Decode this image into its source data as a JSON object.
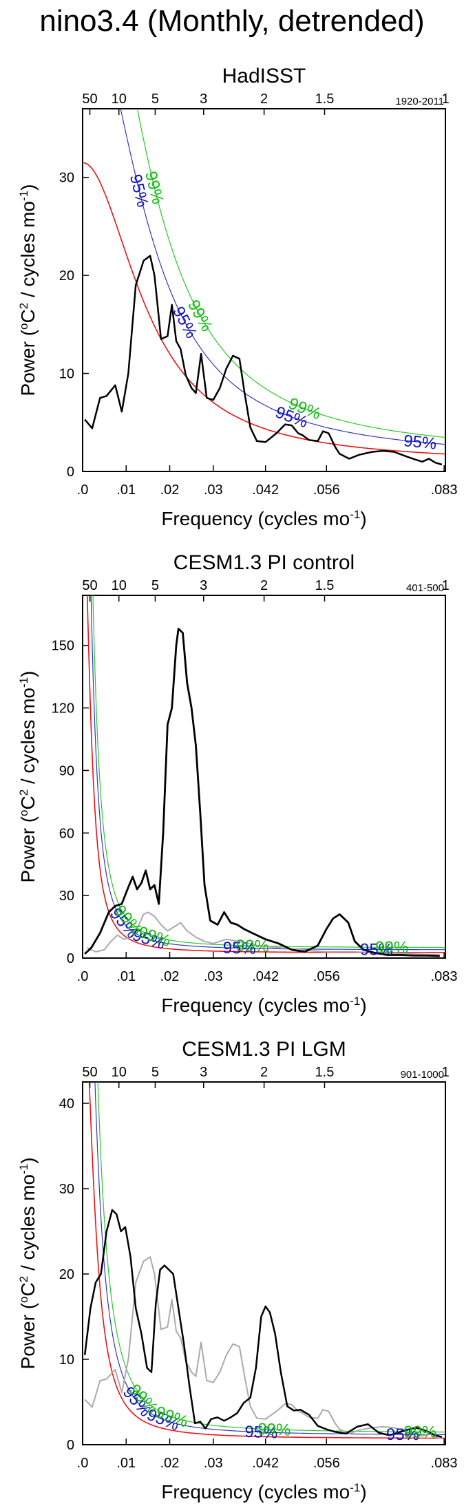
{
  "page_title": "nino3.4 (Monthly, detrended)",
  "colors": {
    "data": "#000000",
    "red_noise": "#ee1111",
    "ci95": "#3333cc",
    "ci99": "#22cc22",
    "reference": "#aaaaaa",
    "label95": "#1111bb",
    "label99": "#11bb11"
  },
  "chart_data": [
    {
      "type": "line",
      "title": "HadISST",
      "period_label": "1920-2011",
      "xlabel": "Frequency (cycles mo⁻¹)",
      "ylabel": "Power (°C² / cycles mo⁻¹)",
      "xlim": [
        0,
        0.0833
      ],
      "ylim": [
        0,
        37
      ],
      "x_ticks": [
        0,
        0.01,
        0.02,
        0.03,
        0.042,
        0.056,
        0.083
      ],
      "x_tick_labels": [
        ".0",
        ".01",
        ".02",
        ".03",
        ".042",
        ".056",
        ".083"
      ],
      "y_ticks": [
        0,
        10,
        20,
        30
      ],
      "y_tick_labels": [
        "0",
        "10",
        "20",
        "30"
      ],
      "period_ticks": [
        50,
        10,
        5,
        3,
        2,
        1.5,
        1
      ],
      "period_tick_labels": [
        "50",
        "10",
        "5",
        "3",
        "2",
        "1.5",
        "1"
      ],
      "rednoise": {
        "a": 31.5,
        "b": 22.0,
        "c": 0.8
      },
      "ci95_factor": 1.55,
      "ci99_factor": 1.95,
      "labels_95": [
        {
          "x": 0.013,
          "text": "95%"
        },
        {
          "x": 0.0235,
          "text": "95%"
        },
        {
          "x": 0.048,
          "text": "95%"
        },
        {
          "x": 0.0775,
          "text": "95%"
        }
      ],
      "labels_99": [
        {
          "x": 0.0165,
          "text": "99%"
        },
        {
          "x": 0.027,
          "text": "99%"
        },
        {
          "x": 0.051,
          "text": "99%"
        }
      ],
      "series": [
        {
          "name": "spectrum",
          "color_key": "data",
          "x": [
            0.0005,
            0.0022,
            0.004,
            0.0055,
            0.0075,
            0.009,
            0.0105,
            0.0122,
            0.014,
            0.0155,
            0.0165,
            0.018,
            0.0195,
            0.0205,
            0.0215,
            0.0225,
            0.0237,
            0.025,
            0.026,
            0.0272,
            0.0285,
            0.03,
            0.0315,
            0.033,
            0.0345,
            0.036,
            0.0372,
            0.0385,
            0.04,
            0.042,
            0.0445,
            0.0465,
            0.048,
            0.0495,
            0.0505,
            0.052,
            0.054,
            0.0552,
            0.0565,
            0.058,
            0.059,
            0.0612,
            0.0635,
            0.0665,
            0.069,
            0.0715,
            0.0745,
            0.0765,
            0.078,
            0.0795,
            0.081,
            0.0825
          ],
          "values": [
            5.3,
            4.4,
            7.5,
            7.7,
            8.8,
            6.1,
            10,
            19,
            21.5,
            22,
            20,
            13.5,
            13.8,
            17,
            13.3,
            12.5,
            9.8,
            8.5,
            8,
            12,
            7.5,
            7.3,
            8.5,
            10.5,
            11.8,
            11.5,
            8,
            4.5,
            3.1,
            3,
            3.9,
            4.8,
            4.7,
            3.9,
            3.7,
            3.2,
            3.1,
            4.1,
            3.9,
            2.5,
            1.8,
            1.3,
            1.7,
            2,
            2.1,
            2,
            1.5,
            1.2,
            1,
            1.3,
            0.9,
            0.7
          ]
        }
      ]
    },
    {
      "type": "line",
      "title": "CESM1.3 PI control",
      "period_label": "401-500",
      "xlabel": "Frequency (cycles mo⁻¹)",
      "ylabel": "Power (°C² / cycles mo⁻¹)",
      "xlim": [
        0,
        0.0833
      ],
      "ylim": [
        0,
        174
      ],
      "x_ticks": [
        0,
        0.01,
        0.02,
        0.03,
        0.042,
        0.056,
        0.083
      ],
      "x_tick_labels": [
        ".0",
        ".01",
        ".02",
        ".03",
        ".042",
        ".056",
        ".083"
      ],
      "y_ticks": [
        0,
        30,
        60,
        90,
        120,
        150
      ],
      "y_tick_labels": [
        "0",
        "30",
        "60",
        "90",
        "120",
        "150"
      ],
      "period_ticks": [
        50,
        10,
        5,
        3,
        2,
        1.5,
        1
      ],
      "period_tick_labels": [
        "50",
        "10",
        "5",
        "3",
        "2",
        "1.5",
        "1"
      ],
      "rednoise": {
        "a": 230,
        "b": 180,
        "c": 2.5
      },
      "ci95_factor": 1.55,
      "ci99_factor": 1.95,
      "labels_95": [
        {
          "x": 0.0095,
          "text": "95%"
        },
        {
          "x": 0.0152,
          "text": "95%"
        },
        {
          "x": 0.036,
          "text": "95%"
        },
        {
          "x": 0.0675,
          "text": "95%"
        }
      ],
      "labels_99": [
        {
          "x": 0.0105,
          "text": "99%"
        },
        {
          "x": 0.0165,
          "text": "99%"
        },
        {
          "x": 0.039,
          "text": "99%"
        },
        {
          "x": 0.071,
          "text": "99%"
        }
      ],
      "series": [
        {
          "name": "spectrum",
          "color_key": "data",
          "x": [
            0.0005,
            0.002,
            0.004,
            0.006,
            0.0075,
            0.009,
            0.0105,
            0.0115,
            0.0125,
            0.0135,
            0.0145,
            0.0155,
            0.0165,
            0.0175,
            0.0185,
            0.0195,
            0.0205,
            0.0215,
            0.022,
            0.023,
            0.024,
            0.025,
            0.026,
            0.027,
            0.028,
            0.0293,
            0.031,
            0.0325,
            0.034,
            0.0355,
            0.037,
            0.039,
            0.042,
            0.045,
            0.048,
            0.051,
            0.054,
            0.056,
            0.0575,
            0.059,
            0.061,
            0.0625,
            0.0645,
            0.067,
            0.07,
            0.073,
            0.076,
            0.079,
            0.082
          ],
          "values": [
            2,
            5,
            12,
            22,
            25,
            26,
            34,
            39,
            33,
            36,
            42,
            33,
            35,
            26,
            60,
            112,
            120,
            150,
            158,
            156,
            132,
            120,
            102,
            70,
            35,
            18,
            16,
            22,
            17,
            16,
            14,
            12,
            9,
            7,
            4,
            3,
            6,
            14,
            19,
            21,
            17,
            8,
            4,
            2.5,
            1.5,
            1.5,
            1.2,
            1.2,
            1
          ],
          "stroke_width": 2.8
        },
        {
          "name": "reference",
          "color_key": "reference",
          "x": [
            0.001,
            0.003,
            0.005,
            0.0065,
            0.008,
            0.0095,
            0.011,
            0.0125,
            0.014,
            0.015,
            0.0165,
            0.018,
            0.0195,
            0.021,
            0.0225,
            0.024,
            0.026,
            0.028,
            0.03,
            0.033,
            0.036,
            0.04,
            0.045,
            0.05,
            0.056,
            0.062,
            0.068,
            0.075,
            0.082
          ],
          "values": [
            5,
            3,
            4,
            8,
            11,
            9,
            10,
            14,
            21,
            22,
            20,
            16,
            13,
            15,
            17,
            13,
            10,
            8,
            7,
            9,
            8,
            6,
            5,
            4,
            3,
            3,
            2.5,
            2,
            1.5
          ],
          "stroke_width": 2
        }
      ]
    },
    {
      "type": "line",
      "title": "CESM1.3 PI LGM",
      "period_label": "901-1000",
      "xlabel": "Frequency (cycles mo⁻¹)",
      "ylabel": "Power (°C² / cycles mo⁻¹)",
      "xlim": [
        0,
        0.0833
      ],
      "ylim": [
        0,
        42.5
      ],
      "x_ticks": [
        0,
        0.01,
        0.02,
        0.03,
        0.042,
        0.056,
        0.083
      ],
      "x_tick_labels": [
        ".0",
        ".01",
        ".02",
        ".03",
        ".042",
        ".056",
        ".083"
      ],
      "y_ticks": [
        0,
        10,
        20,
        30,
        40
      ],
      "y_tick_labels": [
        "0",
        "10",
        "20",
        "30",
        "40"
      ],
      "period_ticks": [
        50,
        10,
        5,
        3,
        2,
        1.5,
        1
      ],
      "period_tick_labels": [
        "50",
        "10",
        "5",
        "3",
        "2",
        "1.5",
        "1"
      ],
      "rednoise": {
        "a": 55,
        "b": 120,
        "c": 0.7
      },
      "ci95_factor": 1.55,
      "ci99_factor": 1.95,
      "labels_95": [
        {
          "x": 0.0125,
          "text": "95%"
        },
        {
          "x": 0.0185,
          "text": "95%"
        },
        {
          "x": 0.041,
          "text": "95%"
        },
        {
          "x": 0.0735,
          "text": "95%"
        }
      ],
      "labels_99": [
        {
          "x": 0.014,
          "text": "99%"
        },
        {
          "x": 0.0205,
          "text": "99%"
        },
        {
          "x": 0.044,
          "text": "99%"
        },
        {
          "x": 0.0775,
          "text": "99%"
        }
      ],
      "series": [
        {
          "name": "spectrum",
          "color_key": "data",
          "x": [
            0.0005,
            0.0018,
            0.003,
            0.0042,
            0.0055,
            0.0068,
            0.0078,
            0.0088,
            0.0098,
            0.011,
            0.0122,
            0.0135,
            0.0148,
            0.0158,
            0.0168,
            0.0178,
            0.0188,
            0.0198,
            0.0208,
            0.022,
            0.0232,
            0.0245,
            0.0258,
            0.027,
            0.0282,
            0.0295,
            0.031,
            0.0325,
            0.034,
            0.0355,
            0.037,
            0.0385,
            0.0398,
            0.041,
            0.042,
            0.043,
            0.0442,
            0.0455,
            0.047,
            0.0485,
            0.05,
            0.052,
            0.054,
            0.056,
            0.058,
            0.0605,
            0.063,
            0.0655,
            0.068,
            0.0705,
            0.0735,
            0.0765,
            0.079,
            0.081,
            0.0825
          ],
          "values": [
            10.5,
            16,
            19,
            20,
            25,
            27.5,
            27,
            25,
            25.5,
            22,
            16,
            13,
            9,
            8.5,
            16.5,
            20.5,
            21,
            20.5,
            20,
            16,
            12,
            7,
            2.5,
            2.7,
            1.9,
            3,
            3.2,
            2.8,
            3.2,
            3.7,
            4.9,
            5.5,
            9,
            15,
            16.2,
            15.5,
            13,
            8.5,
            4.5,
            4,
            4.1,
            3.5,
            2.2,
            1.8,
            1.5,
            1.3,
            2.1,
            2.4,
            1.4,
            1.1,
            1.6,
            2,
            1.6,
            1.1,
            0.9
          ],
          "stroke_width": 2.5
        },
        {
          "name": "reference",
          "color_key": "reference",
          "x": [
            0.0005,
            0.0022,
            0.004,
            0.0055,
            0.0075,
            0.009,
            0.0105,
            0.0122,
            0.014,
            0.0155,
            0.0165,
            0.018,
            0.0195,
            0.0205,
            0.0215,
            0.0225,
            0.0237,
            0.025,
            0.026,
            0.0272,
            0.0285,
            0.03,
            0.0315,
            0.033,
            0.0345,
            0.036,
            0.0372,
            0.0385,
            0.04,
            0.042,
            0.0445,
            0.0465,
            0.048,
            0.0495,
            0.0505,
            0.052,
            0.054,
            0.0552,
            0.0565,
            0.058,
            0.059,
            0.0612,
            0.0635,
            0.0665,
            0.069,
            0.0715,
            0.0745,
            0.0765,
            0.078,
            0.0795,
            0.081,
            0.0825
          ],
          "values": [
            5.3,
            4.4,
            7.5,
            7.7,
            8.8,
            6.1,
            10,
            19,
            21.5,
            22,
            20,
            13.5,
            13.8,
            17,
            13.3,
            12.5,
            9.8,
            8.5,
            8,
            12,
            7.5,
            7.3,
            8.5,
            10.5,
            11.8,
            11.5,
            8,
            4.5,
            3.1,
            3,
            3.9,
            4.8,
            4.7,
            3.9,
            3.7,
            3.2,
            3.1,
            4.1,
            3.9,
            2.5,
            1.8,
            1.3,
            1.7,
            2,
            2.1,
            2,
            1.5,
            1.2,
            1,
            1.3,
            0.9,
            0.7
          ],
          "stroke_width": 2
        }
      ]
    }
  ]
}
